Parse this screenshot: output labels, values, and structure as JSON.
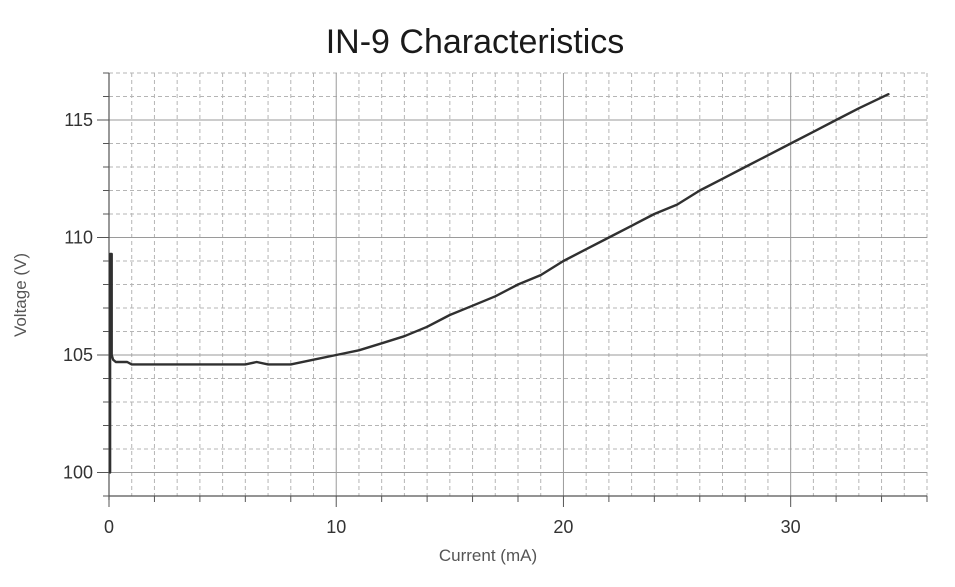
{
  "chart_data": {
    "type": "line",
    "title": "IN-9 Characteristics",
    "xlabel": "Current (mA)",
    "ylabel": "Voltage (V)",
    "xlim": [
      0,
      36
    ],
    "ylim": [
      99,
      117
    ],
    "x_major_ticks": [
      0,
      10,
      20,
      30
    ],
    "y_major_ticks": [
      100,
      105,
      110,
      115
    ],
    "x_minor_step": 1,
    "y_minor_step": 1,
    "grid": true,
    "legend": "none",
    "series": [
      {
        "color": "#303030",
        "x": [
          0.05,
          0.05,
          0.12,
          0.12,
          0.12,
          0.18,
          0.3,
          0.5,
          0.8,
          1.0,
          1.5,
          2.0,
          2.5,
          3.0,
          4.0,
          5.0,
          6.0,
          6.5,
          7.0,
          8.0,
          9.0,
          10.0,
          11.0,
          12.0,
          13.0,
          14.0,
          15.0,
          16.0,
          17.0,
          18.0,
          19.0,
          20.0,
          21.0,
          22.0,
          23.0,
          24.0,
          25.0,
          26.0,
          27.0,
          28.0,
          29.0,
          30.0,
          31.0,
          32.0,
          33.0,
          34.3
        ],
        "y": [
          100.0,
          109.3,
          109.3,
          107.0,
          105.0,
          104.8,
          104.7,
          104.7,
          104.7,
          104.6,
          104.6,
          104.6,
          104.6,
          104.6,
          104.6,
          104.6,
          104.6,
          104.7,
          104.6,
          104.6,
          104.8,
          105.0,
          105.2,
          105.5,
          105.8,
          106.2,
          106.7,
          107.1,
          107.5,
          108.0,
          108.4,
          109.0,
          109.5,
          110.0,
          110.5,
          111.0,
          111.4,
          112.0,
          112.5,
          113.0,
          113.5,
          114.0,
          114.5,
          115.0,
          115.5,
          116.1
        ]
      }
    ]
  }
}
